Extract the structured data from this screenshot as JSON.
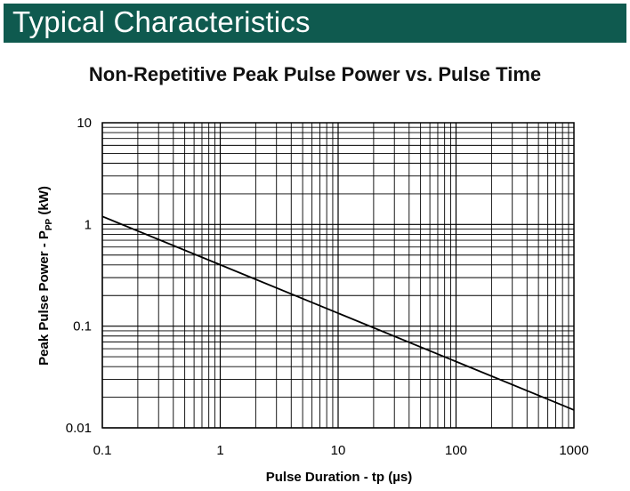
{
  "header": {
    "title": "Typical Characteristics",
    "accent_color": "#0f5a4f"
  },
  "chart_data": {
    "type": "line",
    "title": "Non-Repetitive Peak Pulse Power vs. Pulse Time",
    "xlabel": "Pulse Duration - tp (µs)",
    "ylabel_main": "Peak Pulse Power - P",
    "ylabel_sub": "PP",
    "ylabel_unit": " (kW)",
    "x_scale": "log",
    "y_scale": "log",
    "xlim": [
      0.1,
      1000
    ],
    "ylim": [
      0.01,
      10
    ],
    "x_ticks": [
      0.1,
      1,
      10,
      100,
      1000
    ],
    "x_tick_labels": [
      "0.1",
      "1",
      "10",
      "100",
      "1000"
    ],
    "y_ticks": [
      0.01,
      0.1,
      1,
      10
    ],
    "y_tick_labels": [
      "0.01",
      "0.1",
      "1",
      "10"
    ],
    "grid": true,
    "line_color": "#000000",
    "series": [
      {
        "x": [
          0.1,
          1000
        ],
        "y": [
          1.2,
          0.015
        ]
      }
    ]
  }
}
